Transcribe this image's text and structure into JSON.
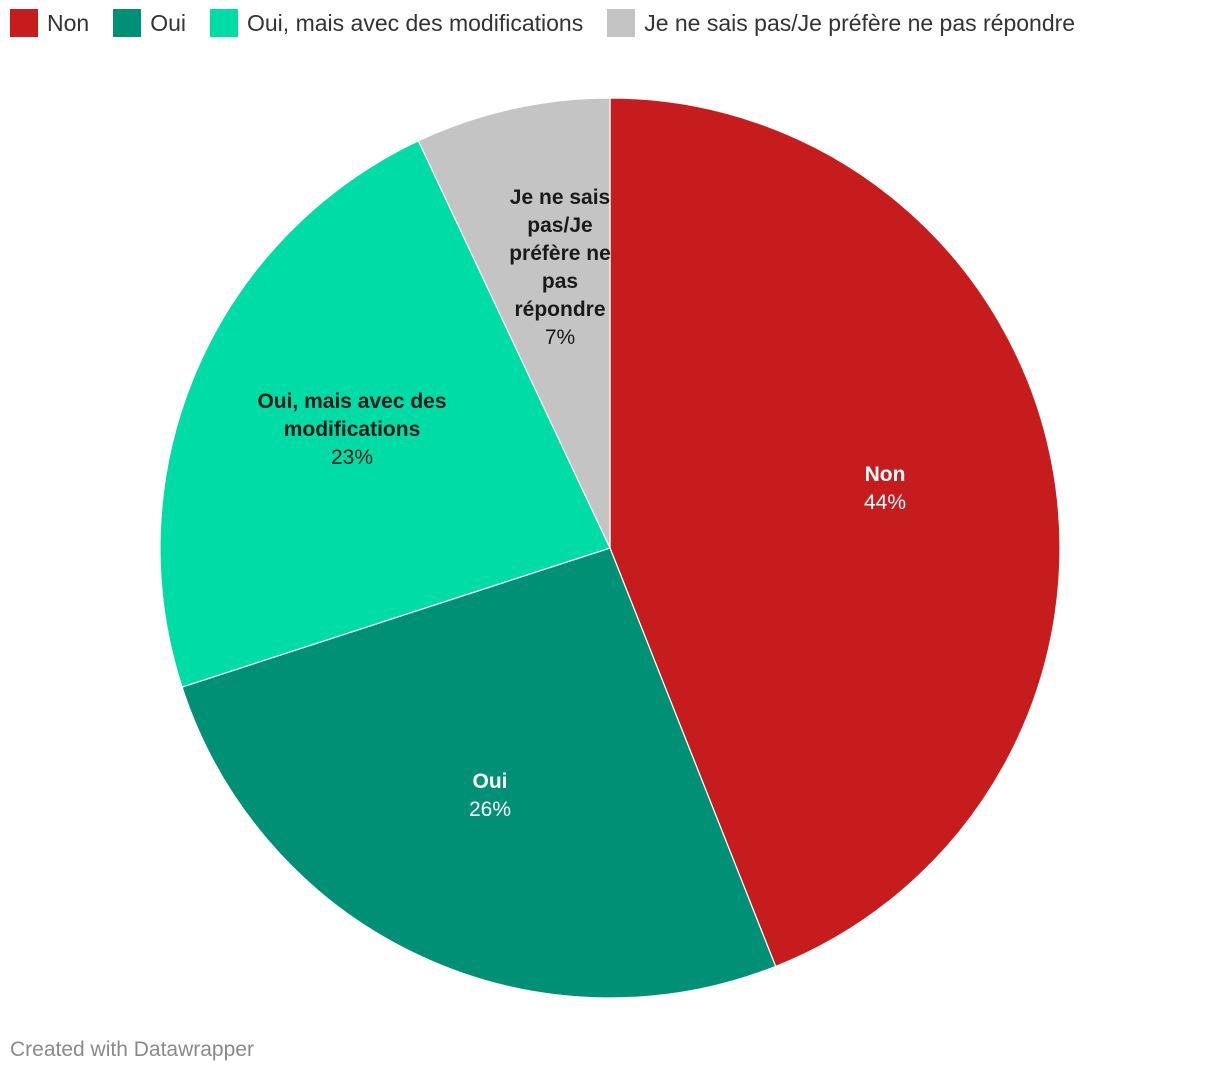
{
  "chart_data": {
    "type": "pie",
    "title": "",
    "legend_placement": "top-left",
    "slices": [
      {
        "label": "Non",
        "value": 44,
        "display": "44%",
        "color": "#c71c1e",
        "label_color": "#ffffff",
        "label_lines": [
          "Non"
        ]
      },
      {
        "label": "Oui",
        "value": 26,
        "display": "26%",
        "color": "#009076",
        "label_color": "#ffffff",
        "label_lines": [
          "Oui"
        ]
      },
      {
        "label": "Oui, mais avec des modifications",
        "value": 23,
        "display": "23%",
        "color": "#00dca6",
        "label_color": "#1a1a1a",
        "label_lines": [
          "Oui, mais avec des",
          "modifications"
        ]
      },
      {
        "label": "Je ne sais pas/Je préfère ne pas répondre",
        "value": 7,
        "display": "7%",
        "color": "#c4c4c4",
        "label_color": "#1a1a1a",
        "label_lines": [
          "Je ne sais",
          "pas/Je",
          "préfère ne",
          "pas",
          "répondre"
        ]
      }
    ]
  },
  "footer": {
    "credit": "Created with Datawrapper"
  }
}
